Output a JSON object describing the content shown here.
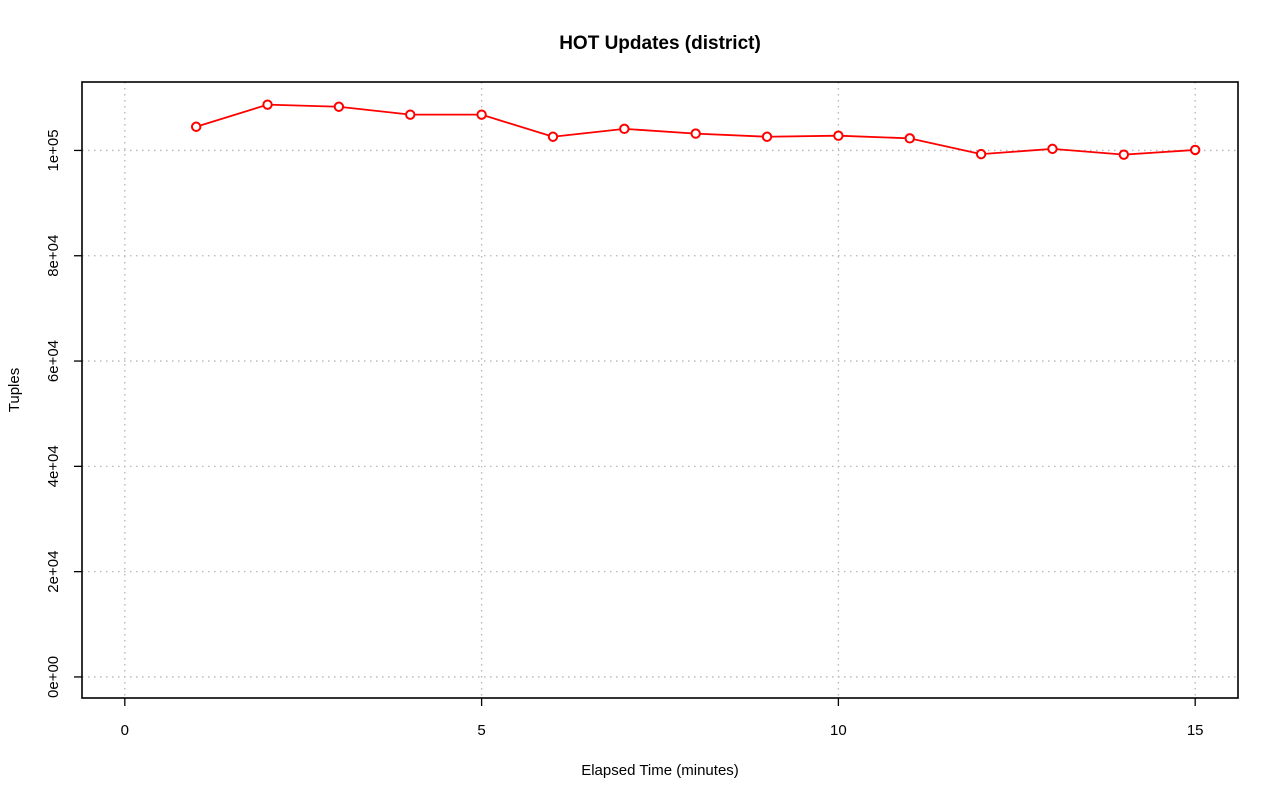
{
  "chart_data": {
    "type": "line",
    "title": "HOT Updates (district)",
    "xlabel": "Elapsed Time (minutes)",
    "ylabel": "Tuples",
    "xlim": [
      -0.6,
      15.6
    ],
    "ylim": [
      -4000,
      113000
    ],
    "x_ticks": [
      0,
      5,
      10,
      15
    ],
    "x_tick_labels": [
      "0",
      "5",
      "10",
      "15"
    ],
    "y_ticks": [
      0,
      20000,
      40000,
      60000,
      80000,
      100000
    ],
    "y_tick_labels": [
      "0e+00",
      "2e+04",
      "4e+04",
      "6e+04",
      "8e+04",
      "1e+05"
    ],
    "grid": true,
    "series": [
      {
        "color": "#ff0000",
        "marker": "open-circle",
        "x": [
          1,
          2,
          3,
          4,
          5,
          6,
          7,
          8,
          9,
          10,
          11,
          12,
          13,
          14,
          15
        ],
        "y": [
          104500,
          108700,
          108300,
          106800,
          106800,
          102600,
          104100,
          103200,
          102600,
          102800,
          102300,
          99300,
          100300,
          99200,
          100100
        ]
      }
    ]
  }
}
